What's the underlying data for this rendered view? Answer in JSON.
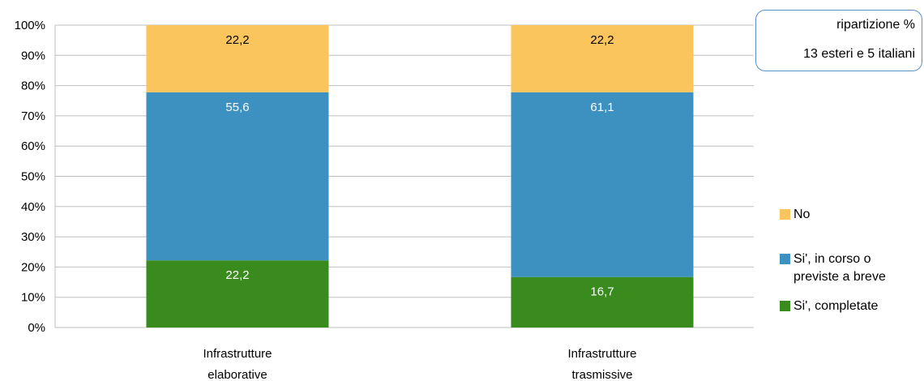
{
  "note": {
    "line1": "ripartizione %",
    "line2": "13 esteri e 5 italiani"
  },
  "chart_data": {
    "type": "bar",
    "stacked": true,
    "categories": [
      "Infrastrutture elaborative",
      "Infrastrutture trasmissive"
    ],
    "category_lines": [
      [
        "Infrastrutture",
        "elaborative"
      ],
      [
        "Infrastrutture",
        "trasmissive"
      ]
    ],
    "series": [
      {
        "name": "Si', completate",
        "values": [
          22.2,
          16.7
        ],
        "labels": [
          "22,2",
          "16,7"
        ],
        "color": "#3a8b1e",
        "label_color": "#ffffff"
      },
      {
        "name": "Si', in corso o previste a breve",
        "values": [
          55.6,
          61.1
        ],
        "labels": [
          "55,6",
          "61,1"
        ],
        "color": "#3c91c0",
        "label_color": "#ffffff"
      },
      {
        "name": "No",
        "values": [
          22.2,
          22.2
        ],
        "labels": [
          "22,2",
          "22,2"
        ],
        "color": "#fac55c",
        "label_color": "#000000"
      }
    ],
    "ylim": [
      0,
      100
    ],
    "yticks": [
      "0%",
      "10%",
      "20%",
      "30%",
      "40%",
      "50%",
      "60%",
      "70%",
      "80%",
      "90%",
      "100%"
    ],
    "grid": true,
    "legend": {
      "position": "right",
      "items": [
        {
          "lines": [
            "No"
          ],
          "color": "#fac55c"
        },
        {
          "lines": [
            "Si', in corso o",
            "previste a breve"
          ],
          "color": "#3c91c0"
        },
        {
          "lines": [
            "Si', completate"
          ],
          "color": "#3a8b1e"
        }
      ]
    }
  }
}
